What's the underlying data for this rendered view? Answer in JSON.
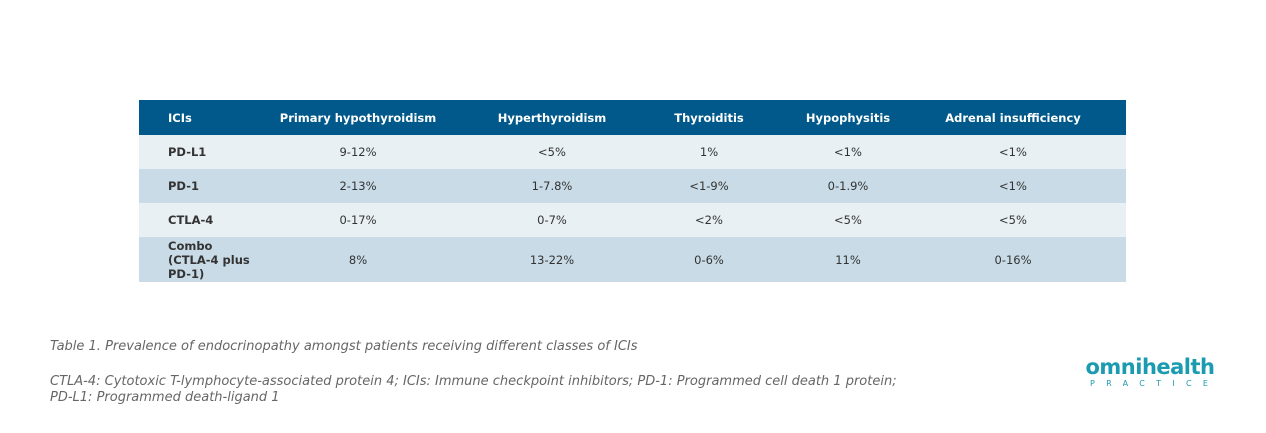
{
  "table": {
    "header": [
      "ICIs",
      "Primary hypothyroidism",
      "Hyperthyroidism",
      "Thyroiditis",
      "Hypophysitis",
      "Adrenal insufficiency"
    ],
    "rows": [
      [
        "PD-L1",
        "9-12%",
        "<5%",
        "1%",
        "<1%",
        "<1%"
      ],
      [
        "PD-1",
        "2-13%",
        "1-7.8%",
        "<1-9%",
        "0-1.9%",
        "<1%"
      ],
      [
        "CTLA-4",
        "0-17%",
        "0-7%",
        "<2%",
        "<5%",
        "<5%"
      ],
      [
        "Combo\n(CTLA-4 plus PD-1)",
        "8%",
        "13-22%",
        "0-6%",
        "11%",
        "0-16%"
      ]
    ]
  },
  "caption": "Table 1. Prevalence of endocrinopathy amongst patients receiving different classes of ICIs",
  "footnote": [
    "CTLA-4:  Cytotoxic T-lymphocyte-associated protein 4; ICIs: Immune checkpoint inhibitors; PD-1: Programmed cell death 1 protein;",
    "PD-L1: Programmed death-ligand 1"
  ],
  "logo": {
    "brand": "omnihealth",
    "sub": "PRACTICE"
  }
}
